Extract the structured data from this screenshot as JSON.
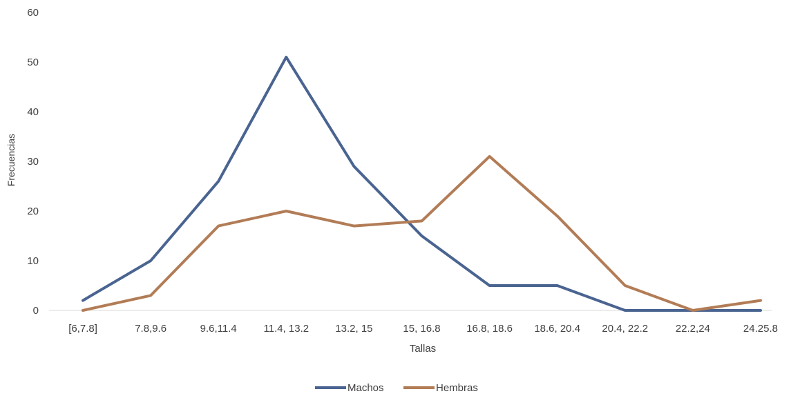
{
  "chart_data": {
    "type": "line",
    "title": "",
    "xlabel": "Tallas",
    "ylabel": "Frecuencias",
    "ylim": [
      0,
      60
    ],
    "yticks": [
      0,
      10,
      20,
      30,
      40,
      50,
      60
    ],
    "grid": false,
    "legend_position": "bottom",
    "categories": [
      "[6,7.8]",
      "7.8,9.6",
      "9.6,11.4",
      "11.4, 13.2",
      "13.2, 15",
      "15, 16.8",
      "16.8, 18.6",
      "18.6, 20.4",
      "20.4, 22.2",
      "22.2,24",
      "24.25.8"
    ],
    "series": [
      {
        "name": "Machos",
        "color": "#4a6491",
        "values": [
          2,
          10,
          26,
          51,
          29,
          15,
          5,
          5,
          0,
          0,
          0
        ]
      },
      {
        "name": "Hembras",
        "color": "#b27c56",
        "values": [
          0,
          3,
          17,
          20,
          17,
          18,
          31,
          19,
          5,
          0,
          2
        ]
      }
    ]
  }
}
